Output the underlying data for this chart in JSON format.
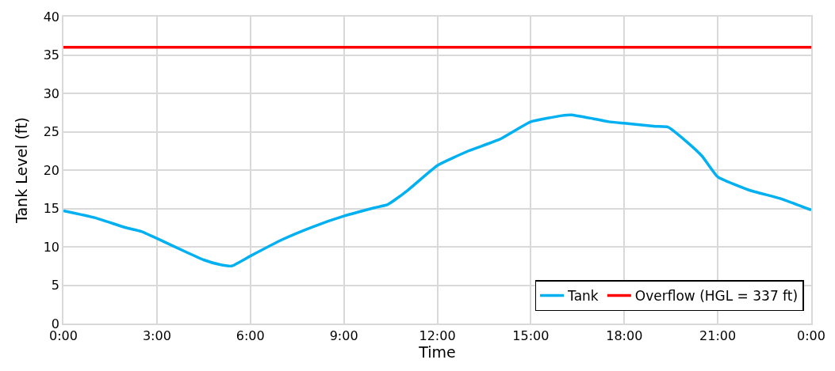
{
  "chart_data": {
    "type": "line",
    "xlabel": "Time",
    "ylabel": "Tank Level (ft)",
    "xlim": [
      0,
      24
    ],
    "xticks": [
      {
        "value": 0,
        "label": "0:00"
      },
      {
        "value": 3,
        "label": "3:00"
      },
      {
        "value": 6,
        "label": "6:00"
      },
      {
        "value": 9,
        "label": "9:00"
      },
      {
        "value": 12,
        "label": "12:00"
      },
      {
        "value": 15,
        "label": "15:00"
      },
      {
        "value": 18,
        "label": "18:00"
      },
      {
        "value": 21,
        "label": "21:00"
      },
      {
        "value": 24,
        "label": "0:00"
      }
    ],
    "ylim": [
      0,
      40
    ],
    "yticks": [
      0,
      5,
      10,
      15,
      20,
      25,
      30,
      35,
      40
    ],
    "grid": true,
    "legend": "bottom right",
    "marker": "none",
    "line_style": "solid",
    "series": [
      {
        "name": "Tank",
        "color": "#00b0f0",
        "x": [
          0,
          1,
          2,
          2.5,
          3,
          4,
          4.5,
          5,
          5.4,
          6,
          7,
          8,
          9,
          10,
          10.4,
          11,
          12,
          13,
          14,
          15,
          16,
          16.3,
          17,
          17.5,
          18,
          19,
          19.4,
          20,
          20.5,
          21,
          22,
          23,
          24
        ],
        "values": [
          14.7,
          13.8,
          12.5,
          12.0,
          11.1,
          9.2,
          8.3,
          7.7,
          7.5,
          8.8,
          10.9,
          12.6,
          14.0,
          15.1,
          15.5,
          17.2,
          20.6,
          22.5,
          24.0,
          26.3,
          27.1,
          27.2,
          26.7,
          26.3,
          26.1,
          25.7,
          25.6,
          23.7,
          21.8,
          19.1,
          17.4,
          16.3,
          14.8
        ]
      },
      {
        "name": "Overflow (HGL = 337 ft)",
        "color": "#ff0000",
        "x": [
          0,
          24
        ],
        "values": [
          36,
          36
        ]
      }
    ]
  }
}
